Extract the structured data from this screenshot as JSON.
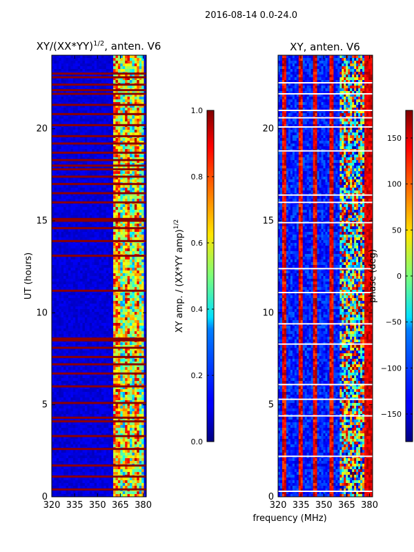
{
  "suptitle": "2016-08-14 0.0-24.0",
  "xlabel_shared": "frequency (MHz)",
  "colors": {
    "low": "#00008f",
    "band": "#8b0000",
    "axis": "#000000"
  },
  "chart_data": [
    {
      "type": "heatmap",
      "title_main": "XY/(XX*YY)",
      "title_sup": "1/2",
      "title_tail": ", anten. V6",
      "xlabel": "",
      "ylabel": "UT (hours)",
      "xlim": [
        320,
        382
      ],
      "ylim": [
        0,
        24
      ],
      "xticks": [
        320,
        335,
        350,
        365,
        380
      ],
      "yticks": [
        0,
        5,
        10,
        15,
        20
      ],
      "interference_band_mhz": [
        361,
        380
      ],
      "colorbar": {
        "label_main": "XY amp. / (XX*YY amp)",
        "label_sup": "1/2",
        "range": [
          0.0,
          1.0
        ],
        "ticks": [
          0.0,
          0.2,
          0.4,
          0.6,
          0.8,
          1.0
        ],
        "tick_labels": [
          "0.0",
          "0.2",
          "0.4",
          "0.6",
          "0.8",
          "1.0"
        ]
      },
      "saturated_rows_hours": [
        0.4,
        1.1,
        1.7,
        2.6,
        3.3,
        4.1,
        4.3,
        5.1,
        6.0,
        6.7,
        7.2,
        7.6,
        8.1,
        8.5,
        8.6,
        11.2,
        13.1,
        13.9,
        14.6,
        15.0,
        15.1,
        16.0,
        16.5,
        17.0,
        17.4,
        17.8,
        18.0,
        18.3,
        18.7,
        19.2,
        19.6,
        20.2,
        20.8,
        21.3,
        21.9,
        22.1,
        22.4,
        22.8,
        23.0
      ]
    },
    {
      "type": "heatmap",
      "title_main": "XY, anten. V6",
      "title_sup": "",
      "title_tail": "",
      "xlabel": "frequency (MHz)",
      "ylabel": "",
      "xlim": [
        320,
        382
      ],
      "ylim": [
        0,
        24
      ],
      "xticks": [
        320,
        335,
        350,
        365,
        380
      ],
      "yticks": [
        0,
        5,
        10,
        15,
        20
      ],
      "colorbar": {
        "label_main": "phase (deg)",
        "range": [
          -180,
          180
        ],
        "ticks": [
          -150,
          -100,
          -50,
          0,
          50,
          100,
          150
        ],
        "tick_labels": [
          "−150",
          "−100",
          "−50",
          "0",
          "50",
          "100",
          "150"
        ]
      },
      "blank_rows_hours": [
        0.3,
        2.2,
        4.4,
        5.3,
        6.1,
        8.3,
        9.4,
        11.1,
        12.4,
        14.9,
        16.0,
        16.4,
        18.8,
        20.1,
        20.6,
        21.0,
        21.9,
        22.5
      ]
    }
  ]
}
